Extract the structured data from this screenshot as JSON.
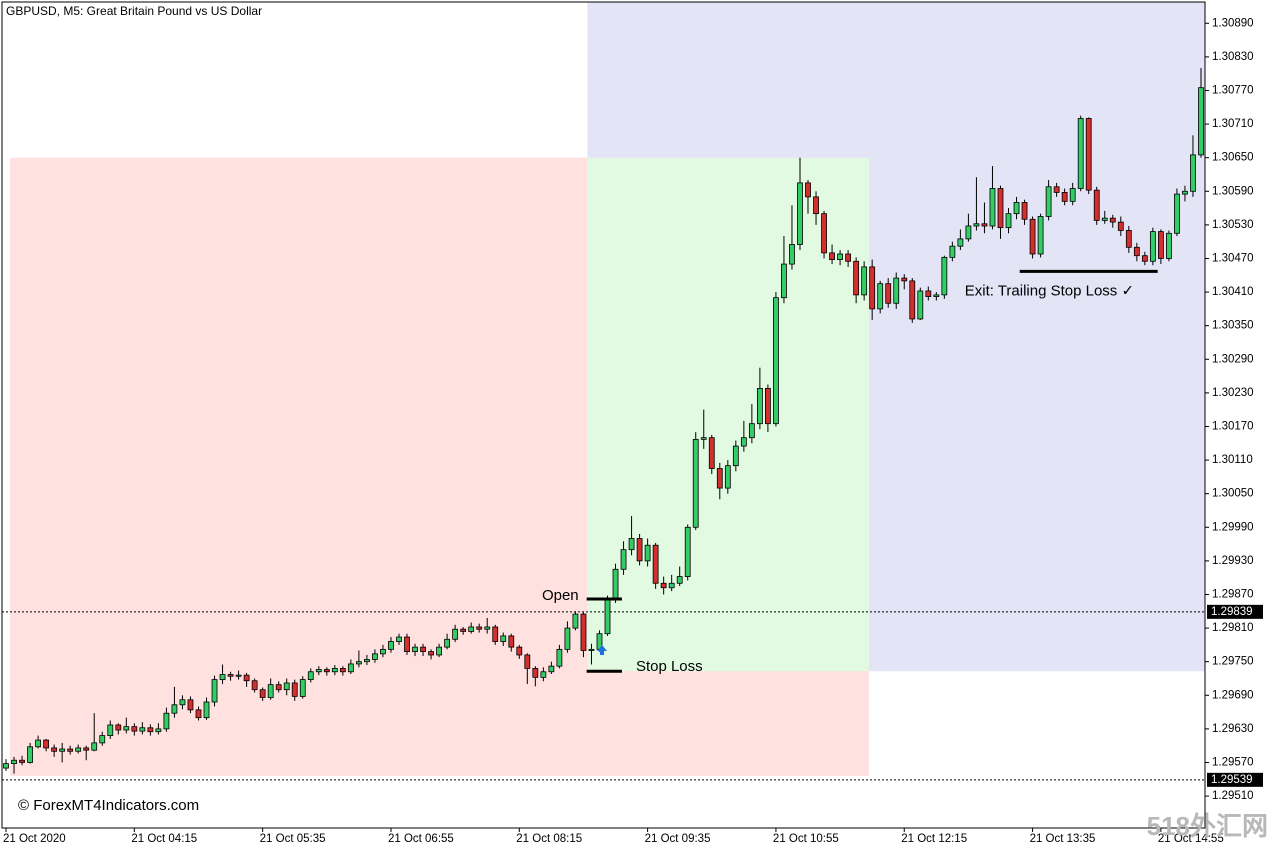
{
  "chart_data": {
    "type": "candlestick",
    "title": "GBPUSD, M5:  Great Britain Pound vs US Dollar",
    "watermark": "© ForexMT4Indicators.com",
    "site_mark": "518外汇网",
    "up_color": "#33cc66",
    "down_color": "#d32f2f",
    "ylim": [
      1.29453,
      1.30928
    ],
    "yticks": [
      {
        "value": 1.3089,
        "label": "1.30890"
      },
      {
        "value": 1.3083,
        "label": "1.30830"
      },
      {
        "value": 1.3077,
        "label": "1.30770"
      },
      {
        "value": 1.3071,
        "label": "1.30710"
      },
      {
        "value": 1.3065,
        "label": "1.30650"
      },
      {
        "value": 1.3059,
        "label": "1.30590"
      },
      {
        "value": 1.3053,
        "label": "1.30530"
      },
      {
        "value": 1.3047,
        "label": "1.30470"
      },
      {
        "value": 1.3041,
        "label": "1.30410"
      },
      {
        "value": 1.3035,
        "label": "1.30350"
      },
      {
        "value": 1.3029,
        "label": "1.30290"
      },
      {
        "value": 1.3023,
        "label": "1.30230"
      },
      {
        "value": 1.3017,
        "label": "1.30170"
      },
      {
        "value": 1.3011,
        "label": "1.30110"
      },
      {
        "value": 1.3005,
        "label": "1.30050"
      },
      {
        "value": 1.2999,
        "label": "1.29990"
      },
      {
        "value": 1.2993,
        "label": "1.29930"
      },
      {
        "value": 1.2987,
        "label": "1.29870"
      },
      {
        "value": 1.2981,
        "label": "1.29810"
      },
      {
        "value": 1.2975,
        "label": "1.29750"
      },
      {
        "value": 1.2969,
        "label": "1.29690"
      },
      {
        "value": 1.2963,
        "label": "1.29630"
      },
      {
        "value": 1.2957,
        "label": "1.29570"
      },
      {
        "value": 1.2951,
        "label": "1.29510"
      }
    ],
    "price_lines": [
      1.29839,
      1.29539
    ],
    "zones": [
      {
        "x": [
          0.5,
          107.6
        ],
        "y": [
          1.29546,
          1.3065
        ],
        "color": "#ffe1df"
      },
      {
        "x": [
          72.5,
          107.6
        ],
        "y": [
          1.29733,
          1.3065
        ],
        "color": "#e3fae2"
      },
      {
        "x": [
          107.6,
          149.9
        ],
        "y": [
          1.29733,
          1.30928
        ],
        "color": "#e4e4f7"
      },
      {
        "x": [
          72.5,
          107.6
        ],
        "y": [
          1.3065,
          1.30928
        ],
        "color": "#e4e4f7"
      }
    ],
    "levels": [
      {
        "label": "Open",
        "value": 1.29862,
        "x": [
          72.4,
          76.8
        ]
      },
      {
        "label": "Stop Loss",
        "value": 1.29733,
        "x": [
          72.4,
          76.8
        ]
      },
      {
        "label": "Exit: Trailing Stop Loss ✓",
        "value": 1.30447,
        "x": [
          126.4,
          143.6
        ]
      }
    ],
    "categories": [
      "21 Oct 2020",
      null,
      null,
      null,
      null,
      null,
      null,
      null,
      null,
      null,
      null,
      null,
      null,
      null,
      null,
      null,
      "21 Oct 04:15",
      null,
      null,
      null,
      null,
      null,
      null,
      null,
      null,
      null,
      null,
      null,
      null,
      null,
      null,
      null,
      "21 Oct 05:35",
      null,
      null,
      null,
      null,
      null,
      null,
      null,
      null,
      null,
      null,
      null,
      null,
      null,
      null,
      null,
      "21 Oct 06:55",
      null,
      null,
      null,
      null,
      null,
      null,
      null,
      null,
      null,
      null,
      null,
      null,
      null,
      null,
      null,
      "21 Oct 08:15",
      null,
      null,
      null,
      null,
      null,
      null,
      null,
      null,
      null,
      null,
      null,
      null,
      null,
      null,
      null,
      "21 Oct 09:35",
      null,
      null,
      null,
      null,
      null,
      null,
      null,
      null,
      null,
      null,
      null,
      null,
      null,
      null,
      null,
      "21 Oct 10:55",
      null,
      null,
      null,
      null,
      null,
      null,
      null,
      null,
      null,
      null,
      null,
      null,
      null,
      null,
      null,
      "21 Oct 12:15",
      null,
      null,
      null,
      null,
      null,
      null,
      null,
      null,
      null,
      null,
      null,
      null,
      null,
      null,
      null,
      "21 Oct 13:35",
      null,
      null,
      null,
      null,
      null,
      null,
      null,
      null,
      null,
      null,
      null,
      null,
      null,
      null,
      null,
      "21 Oct 14:55",
      null,
      null,
      null,
      null,
      null
    ],
    "candles": [
      [
        1.2956,
        1.29576,
        1.29555,
        1.29568
      ],
      [
        1.29568,
        1.2958,
        1.2955,
        1.29574
      ],
      [
        1.29574,
        1.29582,
        1.29565,
        1.2957
      ],
      [
        1.2957,
        1.29605,
        1.29568,
        1.29598
      ],
      [
        1.29598,
        1.29618,
        1.29595,
        1.2961
      ],
      [
        1.2961,
        1.29612,
        1.2959,
        1.29596
      ],
      [
        1.29596,
        1.29602,
        1.2958,
        1.2959
      ],
      [
        1.2959,
        1.29605,
        1.2957,
        1.29594
      ],
      [
        1.29594,
        1.296,
        1.29584,
        1.2959
      ],
      [
        1.2959,
        1.29602,
        1.29586,
        1.29596
      ],
      [
        1.29596,
        1.296,
        1.29574,
        1.29592
      ],
      [
        1.29592,
        1.29658,
        1.2959,
        1.29605
      ],
      [
        1.29605,
        1.29625,
        1.296,
        1.29618
      ],
      [
        1.29618,
        1.29645,
        1.29612,
        1.29637
      ],
      [
        1.29637,
        1.2964,
        1.2962,
        1.29628
      ],
      [
        1.29628,
        1.2965,
        1.29622,
        1.29634
      ],
      [
        1.29634,
        1.2964,
        1.29618,
        1.29626
      ],
      [
        1.29626,
        1.29642,
        1.2962,
        1.29632
      ],
      [
        1.29632,
        1.29638,
        1.29618,
        1.29625
      ],
      [
        1.29625,
        1.2964,
        1.2962,
        1.2963
      ],
      [
        1.2963,
        1.29668,
        1.29625,
        1.29658
      ],
      [
        1.29658,
        1.29705,
        1.2965,
        1.29673
      ],
      [
        1.29673,
        1.2969,
        1.29665,
        1.29682
      ],
      [
        1.29682,
        1.29688,
        1.29658,
        1.29664
      ],
      [
        1.29664,
        1.2967,
        1.29645,
        1.2965
      ],
      [
        1.2965,
        1.29686,
        1.29646,
        1.29678
      ],
      [
        1.29678,
        1.29725,
        1.2967,
        1.29718
      ],
      [
        1.29718,
        1.29745,
        1.2971,
        1.29727
      ],
      [
        1.29727,
        1.29732,
        1.29716,
        1.29724
      ],
      [
        1.29724,
        1.29734,
        1.29718,
        1.29726
      ],
      [
        1.29726,
        1.2973,
        1.29705,
        1.29716
      ],
      [
        1.29716,
        1.2972,
        1.29695,
        1.297
      ],
      [
        1.297,
        1.29704,
        1.2968,
        1.29686
      ],
      [
        1.29686,
        1.2972,
        1.29682,
        1.29709
      ],
      [
        1.29709,
        1.29715,
        1.29695,
        1.297
      ],
      [
        1.297,
        1.2972,
        1.2969,
        1.29712
      ],
      [
        1.29712,
        1.29718,
        1.2968,
        1.29688
      ],
      [
        1.29688,
        1.29724,
        1.29684,
        1.29718
      ],
      [
        1.29718,
        1.29738,
        1.29713,
        1.29732
      ],
      [
        1.29732,
        1.29742,
        1.29726,
        1.29736
      ],
      [
        1.29736,
        1.2974,
        1.29725,
        1.29732
      ],
      [
        1.29732,
        1.29744,
        1.29726,
        1.29738
      ],
      [
        1.29738,
        1.29742,
        1.29725,
        1.29732
      ],
      [
        1.29732,
        1.29754,
        1.29728,
        1.29746
      ],
      [
        1.29746,
        1.2977,
        1.2974,
        1.2975
      ],
      [
        1.2975,
        1.29762,
        1.29744,
        1.29754
      ],
      [
        1.29754,
        1.29772,
        1.29748,
        1.29764
      ],
      [
        1.29764,
        1.2978,
        1.29758,
        1.29772
      ],
      [
        1.29772,
        1.29794,
        1.29766,
        1.29786
      ],
      [
        1.29786,
        1.298,
        1.2978,
        1.29794
      ],
      [
        1.29794,
        1.298,
        1.29762,
        1.29768
      ],
      [
        1.29768,
        1.29782,
        1.2976,
        1.29776
      ],
      [
        1.29776,
        1.29782,
        1.2976,
        1.29768
      ],
      [
        1.29768,
        1.29772,
        1.29754,
        1.29762
      ],
      [
        1.29762,
        1.29782,
        1.29758,
        1.29776
      ],
      [
        1.29776,
        1.298,
        1.29772,
        1.2979
      ],
      [
        1.2979,
        1.29816,
        1.29785,
        1.29808
      ],
      [
        1.29808,
        1.29812,
        1.29798,
        1.29804
      ],
      [
        1.29804,
        1.2982,
        1.298,
        1.29812
      ],
      [
        1.29812,
        1.29818,
        1.29802,
        1.29808
      ],
      [
        1.29808,
        1.29828,
        1.298,
        1.29812
      ],
      [
        1.29812,
        1.29816,
        1.2978,
        1.29786
      ],
      [
        1.29786,
        1.29802,
        1.29778,
        1.29796
      ],
      [
        1.29796,
        1.298,
        1.29768,
        1.29776
      ],
      [
        1.29776,
        1.2978,
        1.29755,
        1.29762
      ],
      [
        1.29762,
        1.29765,
        1.2971,
        1.29738
      ],
      [
        1.29738,
        1.29742,
        1.29706,
        1.29722
      ],
      [
        1.29722,
        1.2974,
        1.29715,
        1.29732
      ],
      [
        1.29732,
        1.2975,
        1.29728,
        1.29742
      ],
      [
        1.29742,
        1.2978,
        1.29738,
        1.29772
      ],
      [
        1.29772,
        1.29822,
        1.29766,
        1.2981
      ],
      [
        1.2981,
        1.2984,
        1.29806,
        1.29835
      ],
      [
        1.29835,
        1.29838,
        1.29758,
        1.2977
      ],
      [
        1.2977,
        1.29782,
        1.29745,
        1.29772
      ],
      [
        1.29772,
        1.29806,
        1.29768,
        1.298
      ],
      [
        1.298,
        1.29868,
        1.29796,
        1.29862
      ],
      [
        1.29862,
        1.29925,
        1.29855,
        1.29915
      ],
      [
        1.29915,
        1.29965,
        1.29905,
        1.2995
      ],
      [
        1.2995,
        1.3001,
        1.2994,
        1.2997
      ],
      [
        1.2997,
        1.29978,
        1.29922,
        1.2993
      ],
      [
        1.2993,
        1.2997,
        1.2992,
        1.29958
      ],
      [
        1.29958,
        1.29962,
        1.2988,
        1.2989
      ],
      [
        1.2989,
        1.29902,
        1.2987,
        1.29882
      ],
      [
        1.29882,
        1.29905,
        1.29876,
        1.2989
      ],
      [
        1.2989,
        1.2992,
        1.29885,
        1.29902
      ],
      [
        1.29902,
        1.29995,
        1.29895,
        1.2999
      ],
      [
        1.2999,
        1.3016,
        1.29985,
        1.30147
      ],
      [
        1.30147,
        1.302,
        1.3013,
        1.3015
      ],
      [
        1.3015,
        1.30155,
        1.30085,
        1.30095
      ],
      [
        1.30095,
        1.30105,
        1.3004,
        1.3006
      ],
      [
        1.3006,
        1.3011,
        1.3005,
        1.301
      ],
      [
        1.301,
        1.30145,
        1.3009,
        1.30135
      ],
      [
        1.30135,
        1.3018,
        1.30125,
        1.3015
      ],
      [
        1.3015,
        1.3021,
        1.3014,
        1.30175
      ],
      [
        1.30175,
        1.30275,
        1.30165,
        1.30238
      ],
      [
        1.30238,
        1.30245,
        1.3016,
        1.30175
      ],
      [
        1.30175,
        1.3041,
        1.3017,
        1.304
      ],
      [
        1.304,
        1.3051,
        1.3039,
        1.3046
      ],
      [
        1.3046,
        1.30565,
        1.3045,
        1.30495
      ],
      [
        1.30495,
        1.3065,
        1.30485,
        1.30605
      ],
      [
        1.30605,
        1.3061,
        1.3055,
        1.3058
      ],
      [
        1.3058,
        1.3059,
        1.3053,
        1.3055
      ],
      [
        1.3055,
        1.30555,
        1.3047,
        1.3048
      ],
      [
        1.3048,
        1.30495,
        1.3046,
        1.30468
      ],
      [
        1.30468,
        1.30485,
        1.30458,
        1.30478
      ],
      [
        1.30478,
        1.30485,
        1.30455,
        1.30465
      ],
      [
        1.30465,
        1.30472,
        1.3039,
        1.30405
      ],
      [
        1.30405,
        1.30465,
        1.30395,
        1.30455
      ],
      [
        1.30455,
        1.30468,
        1.3036,
        1.3038
      ],
      [
        1.3038,
        1.3043,
        1.30372,
        1.30425
      ],
      [
        1.30425,
        1.30435,
        1.30382,
        1.3039
      ],
      [
        1.3039,
        1.30445,
        1.3038,
        1.30435
      ],
      [
        1.30435,
        1.30442,
        1.30415,
        1.3043
      ],
      [
        1.3043,
        1.30435,
        1.30355,
        1.30362
      ],
      [
        1.30362,
        1.30418,
        1.3036,
        1.30412
      ],
      [
        1.30412,
        1.3042,
        1.30395,
        1.30402
      ],
      [
        1.30402,
        1.3041,
        1.30395,
        1.30405
      ],
      [
        1.30405,
        1.30475,
        1.30398,
        1.30472
      ],
      [
        1.30472,
        1.305,
        1.30465,
        1.30492
      ],
      [
        1.30492,
        1.30522,
        1.30485,
        1.30505
      ],
      [
        1.30505,
        1.3055,
        1.305,
        1.30528
      ],
      [
        1.30528,
        1.30615,
        1.3052,
        1.30532
      ],
      [
        1.30532,
        1.3057,
        1.30515,
        1.30528
      ],
      [
        1.30528,
        1.30635,
        1.30522,
        1.30595
      ],
      [
        1.30595,
        1.306,
        1.30505,
        1.30525
      ],
      [
        1.30525,
        1.3056,
        1.30515,
        1.3055
      ],
      [
        1.3055,
        1.3058,
        1.3054,
        1.3057
      ],
      [
        1.3057,
        1.30575,
        1.3053,
        1.3054
      ],
      [
        1.3054,
        1.30545,
        1.3047,
        1.30478
      ],
      [
        1.30478,
        1.3055,
        1.30472,
        1.30545
      ],
      [
        1.30545,
        1.3061,
        1.30538,
        1.30598
      ],
      [
        1.30598,
        1.30605,
        1.3058,
        1.30588
      ],
      [
        1.30588,
        1.30595,
        1.30565,
        1.30572
      ],
      [
        1.30572,
        1.30605,
        1.30565,
        1.30595
      ],
      [
        1.30595,
        1.30725,
        1.3059,
        1.3072
      ],
      [
        1.3072,
        1.30722,
        1.30585,
        1.30592
      ],
      [
        1.30592,
        1.30598,
        1.3053,
        1.30538
      ],
      [
        1.30538,
        1.30555,
        1.30532,
        1.30542
      ],
      [
        1.30542,
        1.30548,
        1.30525,
        1.30535
      ],
      [
        1.30535,
        1.30545,
        1.3051,
        1.3052
      ],
      [
        1.3052,
        1.30528,
        1.3048,
        1.3049
      ],
      [
        1.3049,
        1.30498,
        1.30465,
        1.30475
      ],
      [
        1.30475,
        1.30482,
        1.30458,
        1.30465
      ],
      [
        1.30465,
        1.30525,
        1.30458,
        1.30518
      ],
      [
        1.30518,
        1.30522,
        1.3046,
        1.3047
      ],
      [
        1.3047,
        1.3052,
        1.30465,
        1.30515
      ],
      [
        1.30515,
        1.30595,
        1.3051,
        1.30585
      ],
      [
        1.30585,
        1.306,
        1.30572,
        1.3059
      ],
      [
        1.3059,
        1.3069,
        1.3058,
        1.30655
      ],
      [
        1.30655,
        1.3081,
        1.3065,
        1.30775
      ]
    ]
  }
}
